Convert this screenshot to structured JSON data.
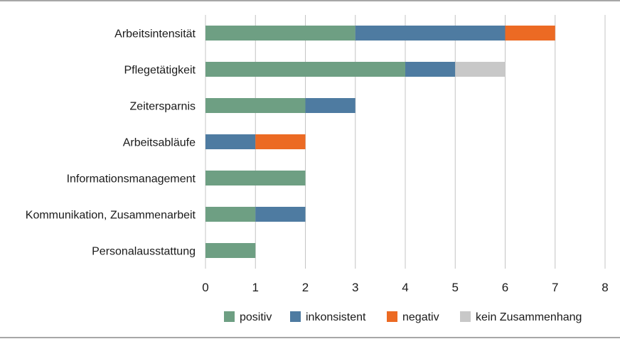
{
  "chart_data": {
    "type": "bar",
    "orientation": "horizontal",
    "stacked": true,
    "categories": [
      "Arbeitsintensität",
      "Pflegetätigkeit",
      "Zeitersparnis",
      "Arbeitsabläufe",
      "Informationsmanagement",
      "Kommunikation, Zusammenarbeit",
      "Personalausstattung"
    ],
    "series": [
      {
        "name": "positiv",
        "color": "#6e9f83",
        "values": [
          3,
          4,
          2,
          0,
          2,
          1,
          1
        ]
      },
      {
        "name": "inkonsistent",
        "color": "#4e7ba1",
        "values": [
          3,
          1,
          1,
          1,
          0,
          1,
          0
        ]
      },
      {
        "name": "negativ",
        "color": "#ec6a23",
        "values": [
          1,
          0,
          0,
          1,
          0,
          0,
          0
        ]
      },
      {
        "name": "kein Zusammenhang",
        "color": "#c8c8c8",
        "values": [
          0,
          1,
          0,
          0,
          0,
          0,
          0
        ]
      }
    ],
    "xlim": [
      0,
      8
    ],
    "xticks": [
      "0",
      "1",
      "2",
      "3",
      "4",
      "5",
      "6",
      "7",
      "8"
    ],
    "grid": true,
    "legend_position": "bottom",
    "title": "",
    "xlabel": "",
    "ylabel": ""
  }
}
